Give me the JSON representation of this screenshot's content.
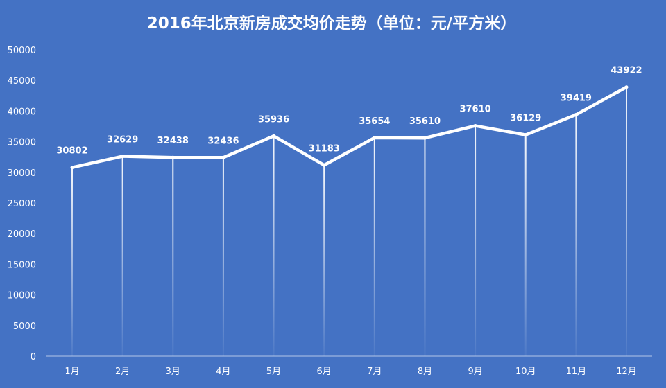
{
  "chart_data": {
    "type": "line",
    "title": "2016年北京新房成交均价走势（单位：元/平方米）",
    "xlabel": "",
    "ylabel": "",
    "categories": [
      "1月",
      "2月",
      "3月",
      "4月",
      "5月",
      "6月",
      "7月",
      "8月",
      "9月",
      "10月",
      "11月",
      "12月"
    ],
    "series": [
      {
        "values": [
          30802,
          32629,
          32438,
          32436,
          35936,
          31183,
          35654,
          35610,
          37610,
          36129,
          39419,
          43922
        ]
      }
    ],
    "data_labels": [
      "30802",
      "32629",
      "32438",
      "32436",
      "35936",
      "31183",
      "35654",
      "35610",
      "37610",
      "36129",
      "39419",
      "43922"
    ],
    "yticks": [
      "0",
      "5000",
      "10000",
      "15000",
      "20000",
      "25000",
      "30000",
      "35000",
      "40000",
      "45000",
      "50000"
    ],
    "ylim": [
      0,
      50000
    ],
    "grid": false,
    "drop_lines": true,
    "legend": "none",
    "colors": {
      "background": "#4472C4",
      "line": "#ffffff",
      "text": "#ffffff"
    }
  }
}
